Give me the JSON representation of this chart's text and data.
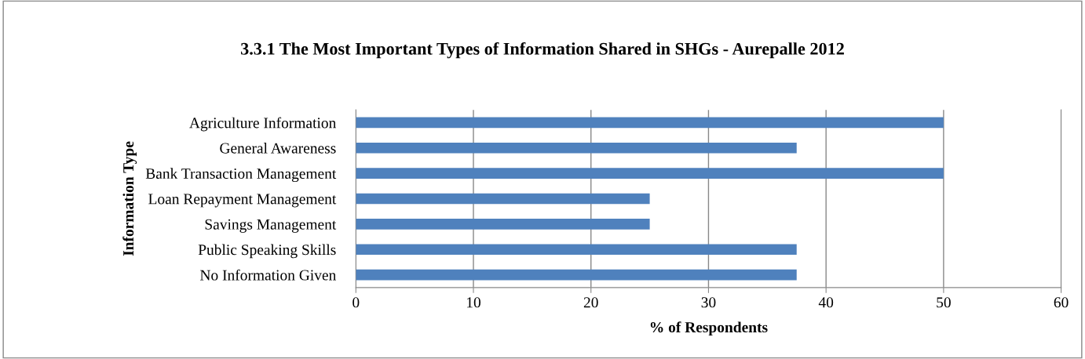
{
  "chart_data": {
    "type": "bar",
    "orientation": "horizontal",
    "title": "3.3.1 The Most Important Types of Information Shared in SHGs - Aurepalle 2012",
    "xlabel": "% of Respondents",
    "ylabel": "Information Type",
    "categories": [
      "Agriculture Information",
      "General Awareness",
      "Bank Transaction Management",
      "Loan Repayment Management",
      "Savings Management",
      "Public Speaking Skills",
      "No Information Given"
    ],
    "values": [
      50,
      37.5,
      50,
      25,
      25,
      37.5,
      37.5
    ],
    "color": "#4f81bd",
    "xlim": [
      0,
      60
    ],
    "xticks": [
      0,
      10,
      20,
      30,
      40,
      50,
      60
    ],
    "grid": "x",
    "legend": false
  }
}
